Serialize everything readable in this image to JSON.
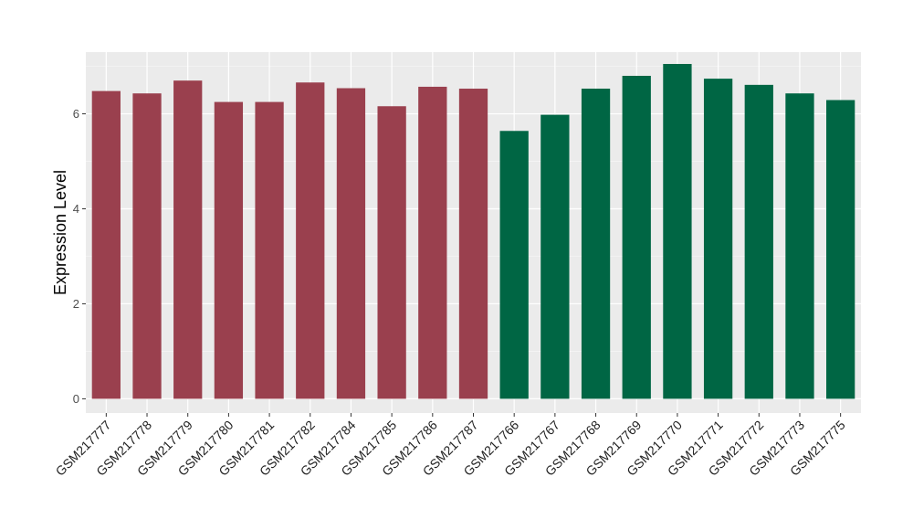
{
  "chart_data": {
    "type": "bar",
    "title": "",
    "xlabel": "",
    "ylabel": "Expression Level",
    "ylim": [
      -0.3,
      7.3
    ],
    "yticks": [
      0,
      2,
      4,
      6
    ],
    "grid": true,
    "legend": "none",
    "categories": [
      "GSM217777",
      "GSM217778",
      "GSM217779",
      "GSM217780",
      "GSM217781",
      "GSM217782",
      "GSM217784",
      "GSM217785",
      "GSM217786",
      "GSM217787",
      "GSM217766",
      "GSM217767",
      "GSM217768",
      "GSM217769",
      "GSM217770",
      "GSM217771",
      "GSM217772",
      "GSM217773",
      "GSM217775"
    ],
    "values": [
      6.48,
      6.43,
      6.7,
      6.25,
      6.25,
      6.66,
      6.54,
      6.16,
      6.57,
      6.53,
      5.64,
      5.98,
      6.53,
      6.8,
      7.05,
      6.74,
      6.61,
      6.43,
      6.29
    ],
    "groups": [
      1,
      1,
      1,
      1,
      1,
      1,
      1,
      1,
      1,
      1,
      2,
      2,
      2,
      2,
      2,
      2,
      2,
      2,
      2
    ],
    "colors": {
      "group1": "#9a404e",
      "group2": "#006644",
      "panel": "#ebebeb",
      "grid_major": "#ffffff",
      "grid_minor": "#f5f5f5"
    }
  }
}
